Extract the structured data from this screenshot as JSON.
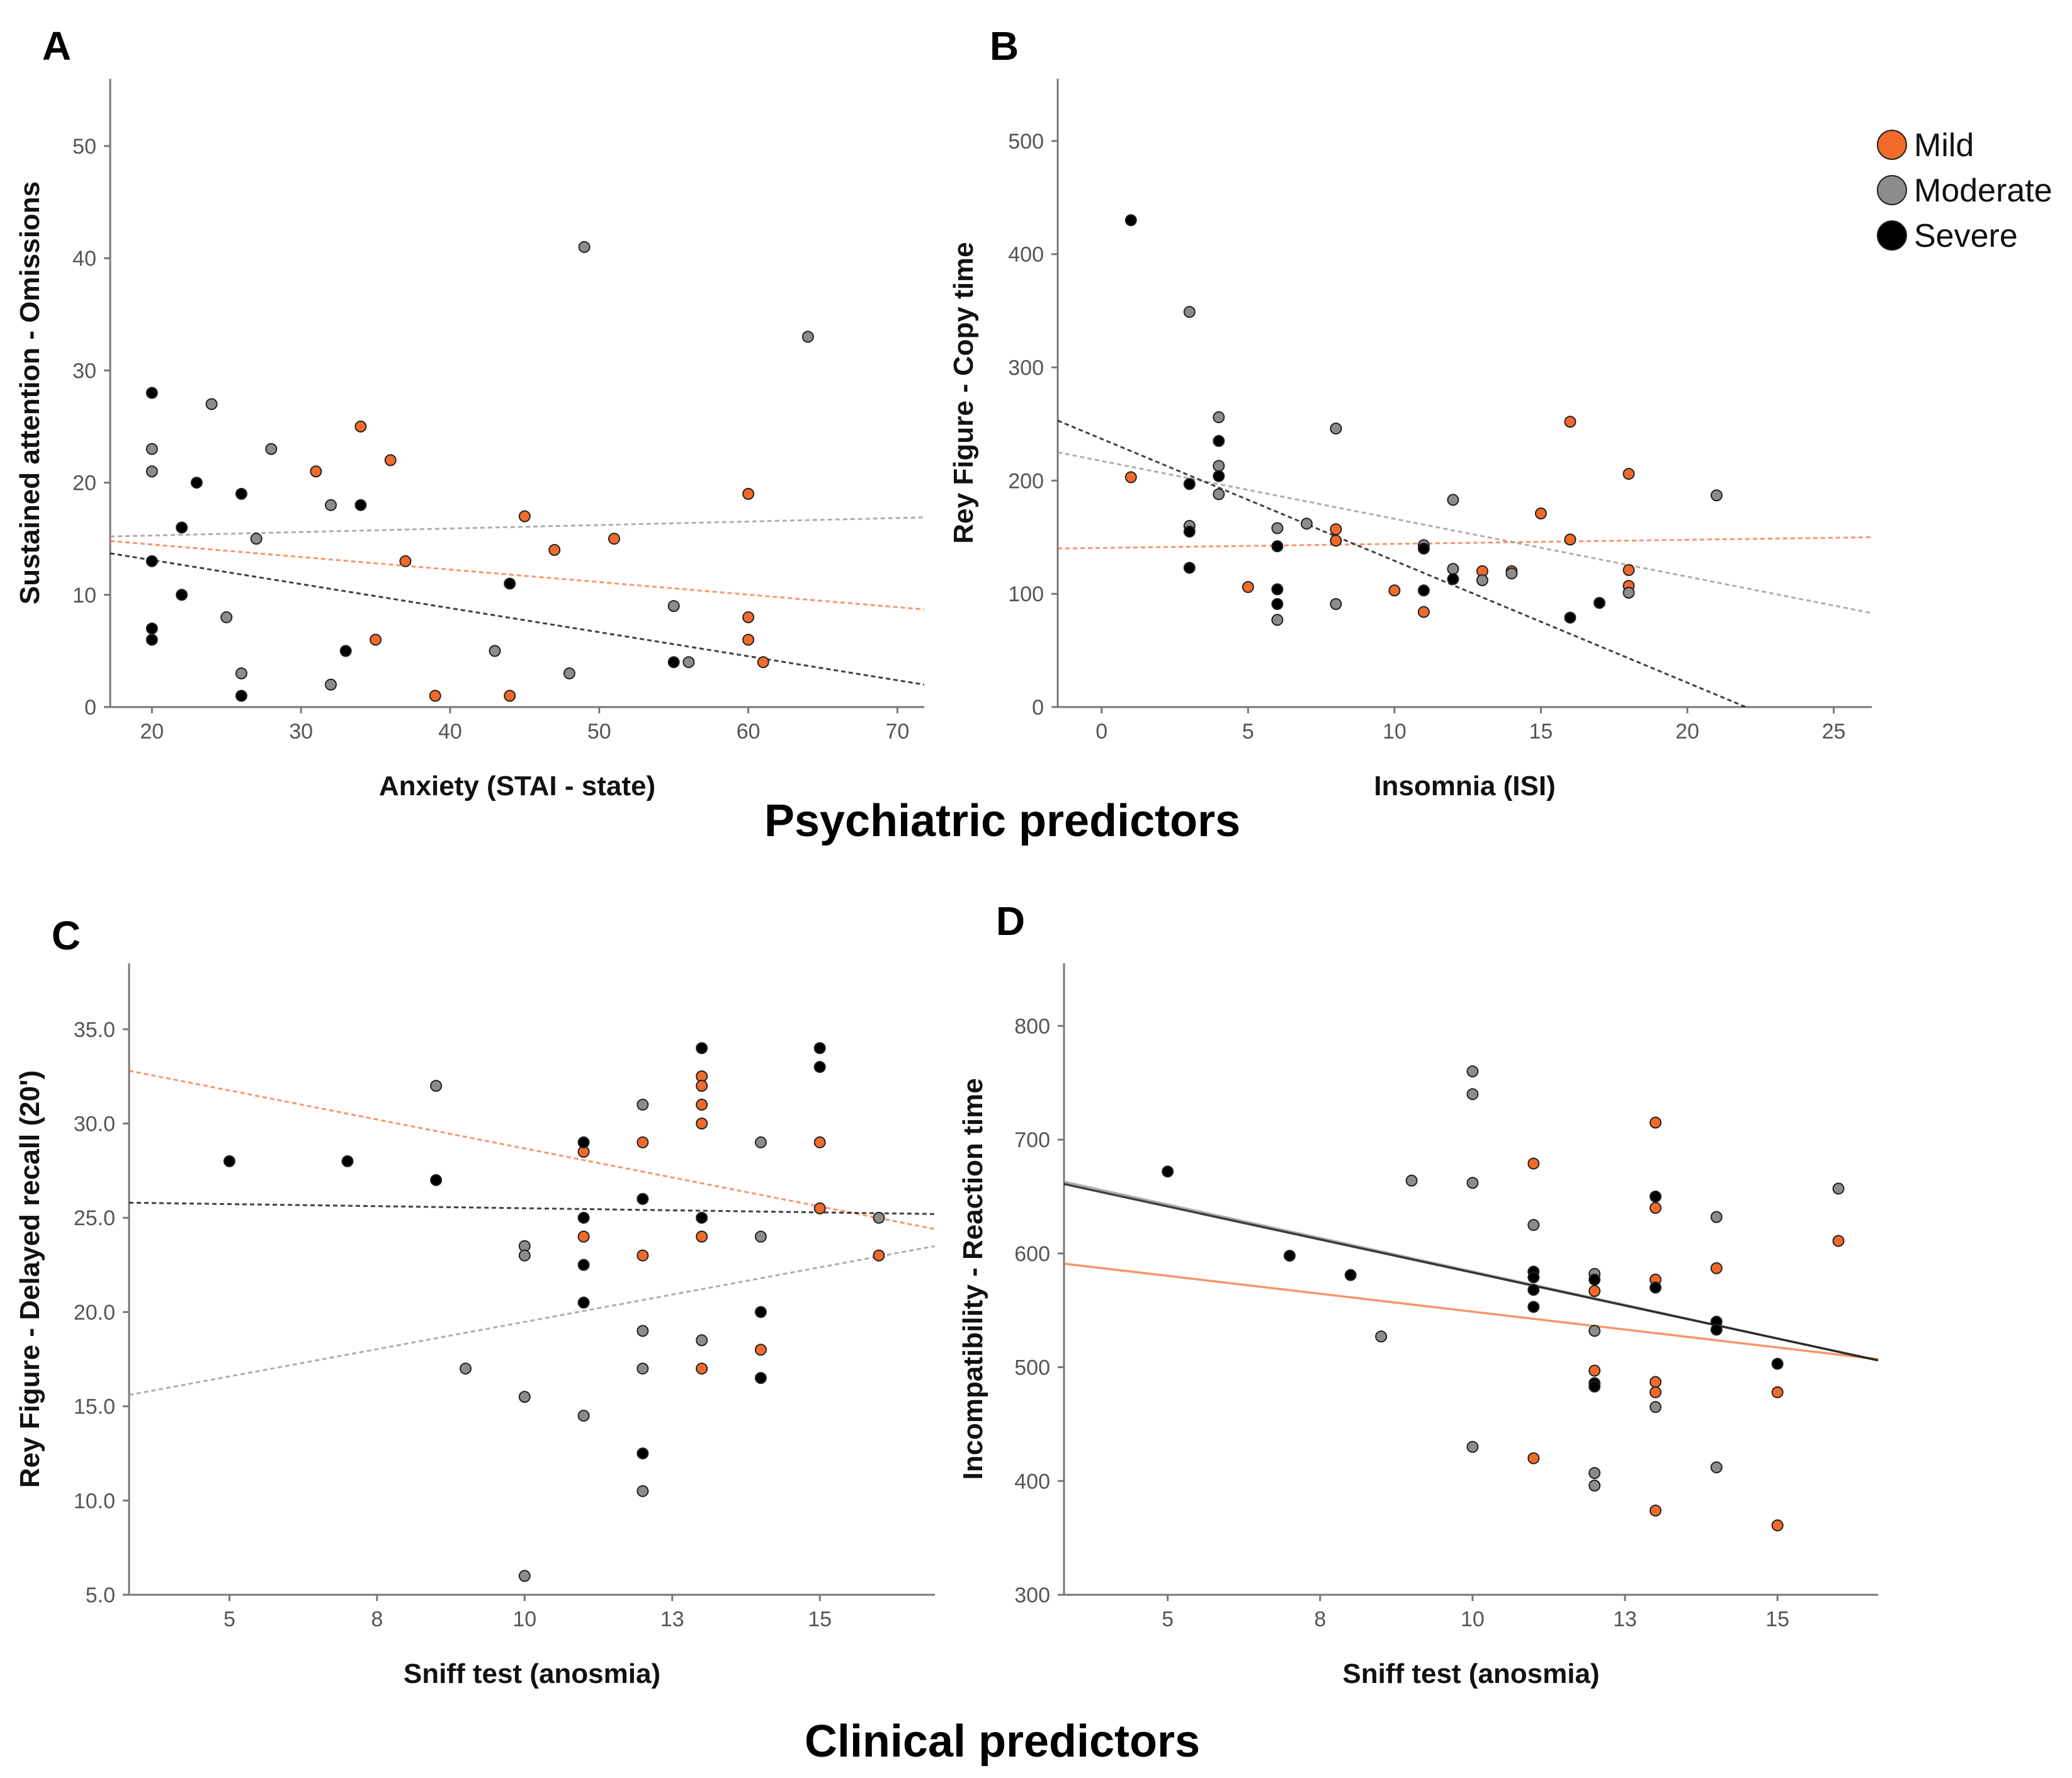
{
  "colors": {
    "mild": "#f26a2a",
    "moderate": "#8c8c8c",
    "severe": "#000000"
  },
  "legend": [
    {
      "name": "Mild",
      "key": "mild"
    },
    {
      "name": "Moderate",
      "key": "moderate"
    },
    {
      "name": "Severe",
      "key": "severe"
    }
  ],
  "sections": {
    "psychiatric": "Psychiatric predictors",
    "clinical": "Clinical predictors"
  },
  "chart_data": [
    {
      "label": "A",
      "type": "scatter",
      "xlabel": "Anxiety (STAI - state)",
      "ylabel": "Sustained attention - Omissions",
      "xlim": [
        17.2,
        71.8
      ],
      "ylim": [
        0,
        56
      ],
      "xticks": [
        20,
        30,
        40,
        50,
        60,
        70
      ],
      "xtick_labels": [
        "20",
        "30",
        "40",
        "50",
        "60",
        "70"
      ],
      "yticks": [
        0,
        10,
        20,
        30,
        40,
        50
      ],
      "ytick_labels": [
        "0",
        "10",
        "20",
        "30",
        "40",
        "50"
      ],
      "series": [
        {
          "name": "Mild",
          "color_key": "mild",
          "trend": [
            [
              17.2,
              14.8
            ],
            [
              71.8,
              8.7
            ]
          ],
          "points": [
            [
              31,
              21
            ],
            [
              34,
              25
            ],
            [
              36,
              22
            ],
            [
              37,
              13
            ],
            [
              35,
              6
            ],
            [
              39,
              1
            ],
            [
              44,
              1
            ],
            [
              45,
              17
            ],
            [
              47,
              14
            ],
            [
              51,
              15
            ],
            [
              60,
              19
            ],
            [
              60,
              8
            ],
            [
              60,
              6
            ],
            [
              61,
              4
            ]
          ]
        },
        {
          "name": "Moderate",
          "color_key": "moderate",
          "trend": [
            [
              17.2,
              15.2
            ],
            [
              71.8,
              16.9
            ]
          ],
          "points": [
            [
              20,
              23
            ],
            [
              20,
              21
            ],
            [
              24,
              27
            ],
            [
              25,
              8
            ],
            [
              26,
              3
            ],
            [
              27,
              15
            ],
            [
              28,
              23
            ],
            [
              32,
              18
            ],
            [
              32,
              2
            ],
            [
              43,
              5
            ],
            [
              48,
              3
            ],
            [
              49,
              41
            ],
            [
              55,
              9
            ],
            [
              56,
              4
            ],
            [
              64,
              33
            ]
          ]
        },
        {
          "name": "Severe",
          "color_key": "severe",
          "trend": [
            [
              17.2,
              13.7
            ],
            [
              71.8,
              2.0
            ]
          ],
          "points": [
            [
              20,
              28
            ],
            [
              20,
              13
            ],
            [
              20,
              7
            ],
            [
              20,
              6
            ],
            [
              22,
              16
            ],
            [
              22,
              10
            ],
            [
              23,
              20
            ],
            [
              26,
              19
            ],
            [
              26,
              1
            ],
            [
              33,
              5
            ],
            [
              34,
              18
            ],
            [
              44,
              11
            ],
            [
              55,
              4
            ]
          ]
        }
      ]
    },
    {
      "label": "B",
      "type": "scatter",
      "xlabel": "Insomnia (ISI)",
      "ylabel": "Rey Figure - Copy time",
      "xlim": [
        -1.5,
        26.3
      ],
      "ylim": [
        0,
        555
      ],
      "xticks": [
        0,
        5,
        10,
        15,
        20,
        25
      ],
      "xtick_labels": [
        "0",
        "5",
        "10",
        "15",
        "20",
        "25"
      ],
      "yticks": [
        0,
        100,
        200,
        300,
        400,
        500
      ],
      "ytick_labels": [
        "0",
        "100",
        "200",
        "300",
        "400",
        "500"
      ],
      "series": [
        {
          "name": "Mild",
          "color_key": "mild",
          "trend": [
            [
              -1.5,
              140
            ],
            [
              26.3,
              150
            ]
          ],
          "points": [
            [
              1,
              203
            ],
            [
              5,
              106
            ],
            [
              8,
              157
            ],
            [
              8,
              147
            ],
            [
              10,
              103
            ],
            [
              11,
              84
            ],
            [
              13,
              120
            ],
            [
              14,
              120
            ],
            [
              15,
              171
            ],
            [
              16,
              252
            ],
            [
              16,
              148
            ],
            [
              18,
              206
            ],
            [
              18,
              121
            ],
            [
              18,
              107
            ]
          ]
        },
        {
          "name": "Moderate",
          "color_key": "moderate",
          "trend": [
            [
              -1.5,
              225
            ],
            [
              26.3,
              83
            ]
          ],
          "points": [
            [
              3,
              349
            ],
            [
              3,
              160
            ],
            [
              4,
              256
            ],
            [
              4,
              213
            ],
            [
              4,
              188
            ],
            [
              6,
              158
            ],
            [
              6,
              77
            ],
            [
              7,
              162
            ],
            [
              8,
              246
            ],
            [
              8,
              91
            ],
            [
              11,
              143
            ],
            [
              12,
              183
            ],
            [
              12,
              122
            ],
            [
              13,
              112
            ],
            [
              14,
              118
            ],
            [
              18,
              101
            ],
            [
              21,
              187
            ]
          ]
        },
        {
          "name": "Severe",
          "color_key": "severe",
          "trend": [
            [
              -1.5,
              253
            ],
            [
              22,
              0
            ]
          ],
          "points": [
            [
              1,
              430
            ],
            [
              3,
              197
            ],
            [
              3,
              155
            ],
            [
              3,
              123
            ],
            [
              4,
              235
            ],
            [
              4,
              204
            ],
            [
              6,
              142
            ],
            [
              6,
              104
            ],
            [
              6,
              91
            ],
            [
              11,
              140
            ],
            [
              11,
              103
            ],
            [
              12,
              113
            ],
            [
              16,
              79
            ],
            [
              17,
              92
            ]
          ]
        }
      ]
    },
    {
      "label": "C",
      "type": "scatter",
      "xlabel": "Sniff test (anosmia)",
      "ylabel": "Rey Figure - Delayed recall (20')",
      "xlim": [
        3.3,
        16.95
      ],
      "ylim": [
        5.0,
        38.5
      ],
      "xticks": [
        5,
        7.5,
        10,
        12.5,
        15
      ],
      "xtick_labels": [
        "5",
        "8",
        "10",
        "13",
        "15"
      ],
      "yticks": [
        5,
        10,
        15,
        20,
        25,
        30,
        35
      ],
      "ytick_labels": [
        "5.0",
        "10.0",
        "15.0",
        "20.0",
        "25.0",
        "30.0",
        "35.0"
      ],
      "series": [
        {
          "name": "Mild",
          "color_key": "mild",
          "trend": [
            [
              3.3,
              32.8
            ],
            [
              16.95,
              24.4
            ]
          ],
          "points": [
            [
              11,
              28.5
            ],
            [
              11,
              24
            ],
            [
              12,
              29
            ],
            [
              12,
              23
            ],
            [
              13,
              32.5
            ],
            [
              13,
              32
            ],
            [
              13,
              31
            ],
            [
              13,
              30
            ],
            [
              13,
              24
            ],
            [
              13,
              17
            ],
            [
              14,
              18
            ],
            [
              15,
              29
            ],
            [
              15,
              25.5
            ],
            [
              16,
              23
            ]
          ]
        },
        {
          "name": "Moderate",
          "color_key": "moderate",
          "trend": [
            [
              3.3,
              15.6
            ],
            [
              16.95,
              23.5
            ]
          ],
          "points": [
            [
              8.5,
              32
            ],
            [
              9,
              17
            ],
            [
              10,
              23.5
            ],
            [
              10,
              23
            ],
            [
              10,
              15.5
            ],
            [
              10,
              6
            ],
            [
              11,
              14.5
            ],
            [
              12,
              31
            ],
            [
              12,
              19
            ],
            [
              12,
              17
            ],
            [
              12,
              10.5
            ],
            [
              13,
              18.5
            ],
            [
              14,
              29
            ],
            [
              14,
              24
            ],
            [
              16,
              25
            ]
          ]
        },
        {
          "name": "Severe",
          "color_key": "severe",
          "trend": [
            [
              3.3,
              25.8
            ],
            [
              16.95,
              25.2
            ]
          ],
          "points": [
            [
              5,
              28
            ],
            [
              7,
              28
            ],
            [
              8.5,
              27
            ],
            [
              11,
              29
            ],
            [
              11,
              25
            ],
            [
              11,
              22.5
            ],
            [
              11,
              20.5
            ],
            [
              12,
              26
            ],
            [
              12,
              12.5
            ],
            [
              13,
              34
            ],
            [
              13,
              25
            ],
            [
              14,
              20
            ],
            [
              14,
              16.5
            ],
            [
              15,
              34
            ],
            [
              15,
              33
            ]
          ]
        }
      ]
    },
    {
      "label": "D",
      "type": "scatter",
      "xlabel": "Sniff test (anosmia)",
      "ylabel": "Incompatibility - Reaction time",
      "xlim": [
        3.3,
        16.65
      ],
      "ylim": [
        300,
        855
      ],
      "xticks": [
        5,
        7.5,
        10,
        12.5,
        15
      ],
      "xtick_labels": [
        "5",
        "8",
        "10",
        "13",
        "15"
      ],
      "yticks": [
        300,
        400,
        500,
        600,
        700,
        800
      ],
      "ytick_labels": [
        "300",
        "400",
        "500",
        "600",
        "700",
        "800"
      ],
      "series": [
        {
          "name": "Mild",
          "color_key": "mild",
          "trend": [
            [
              3.3,
              591
            ],
            [
              16.65,
              507
            ]
          ],
          "points": [
            [
              11,
              679
            ],
            [
              11,
              420
            ],
            [
              12,
              567
            ],
            [
              12,
              497
            ],
            [
              13,
              715
            ],
            [
              13,
              640
            ],
            [
              13,
              577
            ],
            [
              13,
              487
            ],
            [
              13,
              478
            ],
            [
              13,
              374
            ],
            [
              14,
              587
            ],
            [
              15,
              478
            ],
            [
              15,
              361
            ],
            [
              16,
              611
            ]
          ]
        },
        {
          "name": "Moderate",
          "color_key": "moderate",
          "trend": [
            [
              3.3,
              663
            ],
            [
              16.65,
              506
            ]
          ],
          "points": [
            [
              8.5,
              527
            ],
            [
              9,
              664
            ],
            [
              10,
              760
            ],
            [
              10,
              740
            ],
            [
              10,
              662
            ],
            [
              10,
              430
            ],
            [
              11,
              625
            ],
            [
              12,
              582
            ],
            [
              12,
              532
            ],
            [
              12,
              407
            ],
            [
              12,
              396
            ],
            [
              13,
              465
            ],
            [
              14,
              632
            ],
            [
              14,
              412
            ],
            [
              16,
              657
            ]
          ]
        },
        {
          "name": "Severe",
          "color_key": "severe",
          "trend": [
            [
              3.3,
              661
            ],
            [
              16.65,
              506
            ]
          ],
          "points": [
            [
              5,
              672
            ],
            [
              7,
              598
            ],
            [
              8,
              581
            ],
            [
              11,
              584
            ],
            [
              11,
              579
            ],
            [
              11,
              568
            ],
            [
              11,
              553
            ],
            [
              12,
              577
            ],
            [
              12,
              486
            ],
            [
              12,
              483
            ],
            [
              13,
              650
            ],
            [
              13,
              570
            ],
            [
              14,
              540
            ],
            [
              14,
              533
            ],
            [
              15,
              503
            ]
          ]
        }
      ]
    }
  ]
}
